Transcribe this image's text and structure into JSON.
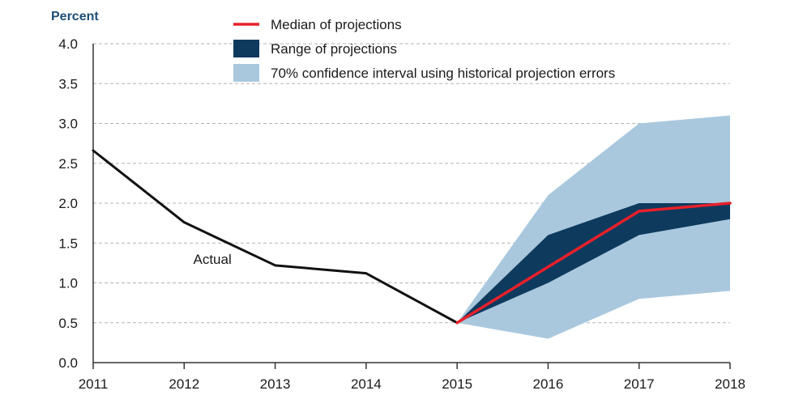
{
  "chart_data": {
    "type": "line",
    "unit_label": "Percent",
    "x": [
      2011,
      2012,
      2013,
      2014,
      2015,
      2016,
      2017,
      2018
    ],
    "xlim": [
      2011,
      2018
    ],
    "ylim": [
      0,
      4
    ],
    "y_ticks": [
      "0.0",
      "0.5",
      "1.0",
      "1.5",
      "2.0",
      "2.5",
      "3.0",
      "3.5",
      "4.0"
    ],
    "grid": "horizontal dashed",
    "legend_position": "top-right",
    "legend": [
      {
        "label": "Median of projections",
        "swatch": "line",
        "color": "#e8202a"
      },
      {
        "label": "Range of projections",
        "swatch": "box",
        "color": "#0e3a5e"
      },
      {
        "label": "70% confidence interval using historical projection errors",
        "swatch": "box",
        "color": "#a9c8de"
      }
    ],
    "series": [
      {
        "name": "Actual",
        "color": "#111111",
        "x": [
          2011,
          2012,
          2013,
          2014,
          2015
        ],
        "values": [
          2.66,
          1.76,
          1.22,
          1.12,
          0.5
        ]
      },
      {
        "name": "Median of projections",
        "color": "#e8202a",
        "x": [
          2015,
          2016,
          2017,
          2018
        ],
        "values": [
          0.5,
          1.2,
          1.9,
          2.0
        ]
      }
    ],
    "bands": [
      {
        "name": "70% confidence interval using historical projection errors",
        "color": "#a9c8de",
        "x": [
          2015,
          2016,
          2017,
          2018
        ],
        "low": [
          0.5,
          0.3,
          0.8,
          0.9
        ],
        "high": [
          0.5,
          2.1,
          3.0,
          3.1
        ]
      },
      {
        "name": "Range of projections",
        "color": "#0e3a5e",
        "x": [
          2015,
          2016,
          2017,
          2018
        ],
        "low": [
          0.5,
          1.0,
          1.6,
          1.8
        ],
        "high": [
          0.5,
          1.6,
          2.0,
          2.0
        ]
      }
    ],
    "annotations": [
      {
        "text": "Actual",
        "x": 2012.1,
        "y": 1.3
      }
    ]
  }
}
